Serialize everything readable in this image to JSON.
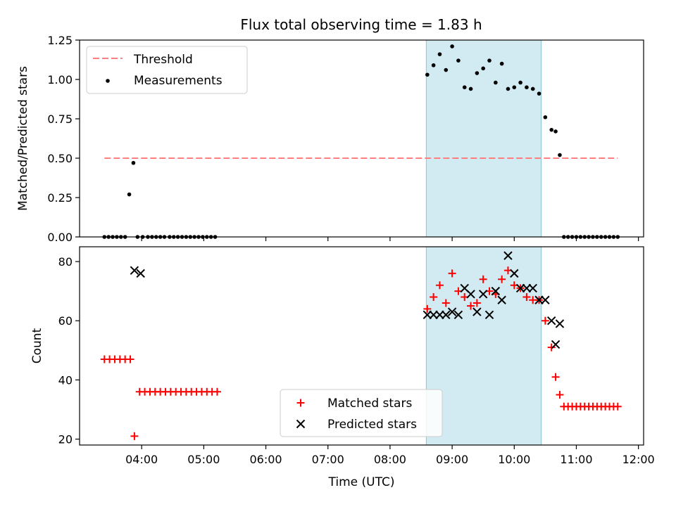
{
  "figure": {
    "title": "Flux total observing time = 1.83 h"
  },
  "chart_data": [
    {
      "type": "scatter",
      "title": "Flux total observing time = 1.83 h",
      "xlabel": "",
      "ylabel": "Matched/Predicted stars",
      "ylim": [
        0,
        1.25
      ],
      "yticks": [
        "0.00",
        "0.25",
        "0.50",
        "0.75",
        "1.00",
        "1.25"
      ],
      "xlim": [
        "03:00",
        "12:05"
      ],
      "grid": false,
      "legend_placement": "upper left",
      "shaded_span": {
        "x_start": "08:35",
        "x_end": "10:26",
        "color": "#add8e6"
      },
      "series": [
        {
          "name": "Threshold",
          "style": "dashed-line",
          "color": "#ff7f7f",
          "x": [
            "03:24",
            "11:40"
          ],
          "y": [
            0.5,
            0.5
          ]
        },
        {
          "name": "Measurements",
          "style": "dot",
          "color": "#000000",
          "x": [
            "03:24",
            "03:28",
            "03:32",
            "03:36",
            "03:40",
            "03:44",
            "03:48",
            "03:52",
            "03:56",
            "04:01",
            "04:06",
            "04:10",
            "04:14",
            "04:18",
            "04:22",
            "04:27",
            "04:31",
            "04:35",
            "04:39",
            "04:43",
            "04:47",
            "04:51",
            "04:55",
            "04:59",
            "05:03",
            "05:07",
            "05:11",
            "08:36",
            "08:42",
            "08:48",
            "08:54",
            "09:00",
            "09:06",
            "09:12",
            "09:18",
            "09:24",
            "09:30",
            "09:36",
            "09:42",
            "09:48",
            "09:54",
            "10:00",
            "10:06",
            "10:12",
            "10:18",
            "10:24",
            "10:30",
            "10:36",
            "10:40",
            "10:44",
            "10:48",
            "10:52",
            "10:56",
            "11:00",
            "11:04",
            "11:08",
            "11:12",
            "11:16",
            "11:20",
            "11:24",
            "11:28",
            "11:32",
            "11:36",
            "11:40"
          ],
          "y": [
            0,
            0,
            0,
            0,
            0,
            0,
            0.27,
            0.47,
            0,
            0,
            0,
            0,
            0,
            0,
            0,
            0,
            0,
            0,
            0,
            0,
            0,
            0,
            0,
            0,
            0,
            0,
            0,
            1.03,
            1.09,
            1.16,
            1.06,
            1.21,
            1.12,
            0.95,
            0.94,
            1.04,
            1.07,
            1.12,
            0.98,
            1.1,
            0.94,
            0.95,
            0.98,
            0.95,
            0.94,
            0.91,
            0.76,
            0.68,
            0.67,
            0.52,
            0,
            0,
            0,
            0,
            0,
            0,
            0,
            0,
            0,
            0,
            0,
            0,
            0,
            0
          ]
        }
      ]
    },
    {
      "type": "scatter",
      "title": "",
      "xlabel": "Time (UTC)",
      "ylabel": "Count",
      "ylim": [
        18,
        85
      ],
      "yticks": [
        "20",
        "40",
        "60",
        "80"
      ],
      "xlim": [
        "03:00",
        "12:05"
      ],
      "xticks": [
        "04:00",
        "05:00",
        "06:00",
        "07:00",
        "08:00",
        "09:00",
        "10:00",
        "11:00",
        "12:00"
      ],
      "grid": false,
      "legend_placement": "lower center",
      "shaded_span": {
        "x_start": "08:35",
        "x_end": "10:26",
        "color": "#add8e6"
      },
      "series": [
        {
          "name": "Matched stars",
          "style": "plus",
          "color": "#ff0000",
          "x": [
            "03:24",
            "03:29",
            "03:34",
            "03:39",
            "03:44",
            "03:49",
            "03:53",
            "03:58",
            "04:03",
            "04:08",
            "04:13",
            "04:18",
            "04:23",
            "04:28",
            "04:33",
            "04:38",
            "04:43",
            "04:48",
            "04:53",
            "04:58",
            "05:03",
            "05:08",
            "05:13",
            "08:36",
            "08:42",
            "08:48",
            "08:54",
            "09:00",
            "09:06",
            "09:12",
            "09:18",
            "09:24",
            "09:30",
            "09:36",
            "09:42",
            "09:48",
            "09:54",
            "10:00",
            "10:06",
            "10:12",
            "10:18",
            "10:24",
            "10:30",
            "10:36",
            "10:40",
            "10:44",
            "10:48",
            "10:52",
            "10:56",
            "11:00",
            "11:04",
            "11:08",
            "11:12",
            "11:16",
            "11:20",
            "11:24",
            "11:28",
            "11:32",
            "11:36",
            "11:40"
          ],
          "y": [
            47,
            47,
            47,
            47,
            47,
            47,
            21,
            36,
            36,
            36,
            36,
            36,
            36,
            36,
            36,
            36,
            36,
            36,
            36,
            36,
            36,
            36,
            36,
            64,
            68,
            72,
            66,
            76,
            70,
            68,
            65,
            66,
            74,
            70,
            69,
            74,
            77,
            72,
            71,
            68,
            67,
            67,
            60,
            51,
            41,
            35,
            31,
            31,
            31,
            31,
            31,
            31,
            31,
            31,
            31,
            31,
            31,
            31,
            31,
            31
          ]
        },
        {
          "name": "Predicted stars",
          "style": "x",
          "color": "#000000",
          "x": [
            "03:53",
            "03:59",
            "08:36",
            "08:42",
            "08:48",
            "08:54",
            "09:00",
            "09:06",
            "09:12",
            "09:18",
            "09:24",
            "09:30",
            "09:36",
            "09:42",
            "09:48",
            "09:54",
            "10:00",
            "10:06",
            "10:12",
            "10:18",
            "10:24",
            "10:30",
            "10:36",
            "10:40",
            "10:44"
          ],
          "y": [
            77,
            76,
            62,
            62,
            62,
            62,
            63,
            62,
            71,
            69,
            63,
            69,
            62,
            70,
            67,
            82,
            76,
            71,
            71,
            71,
            67,
            67,
            60,
            52,
            59
          ]
        }
      ]
    }
  ]
}
